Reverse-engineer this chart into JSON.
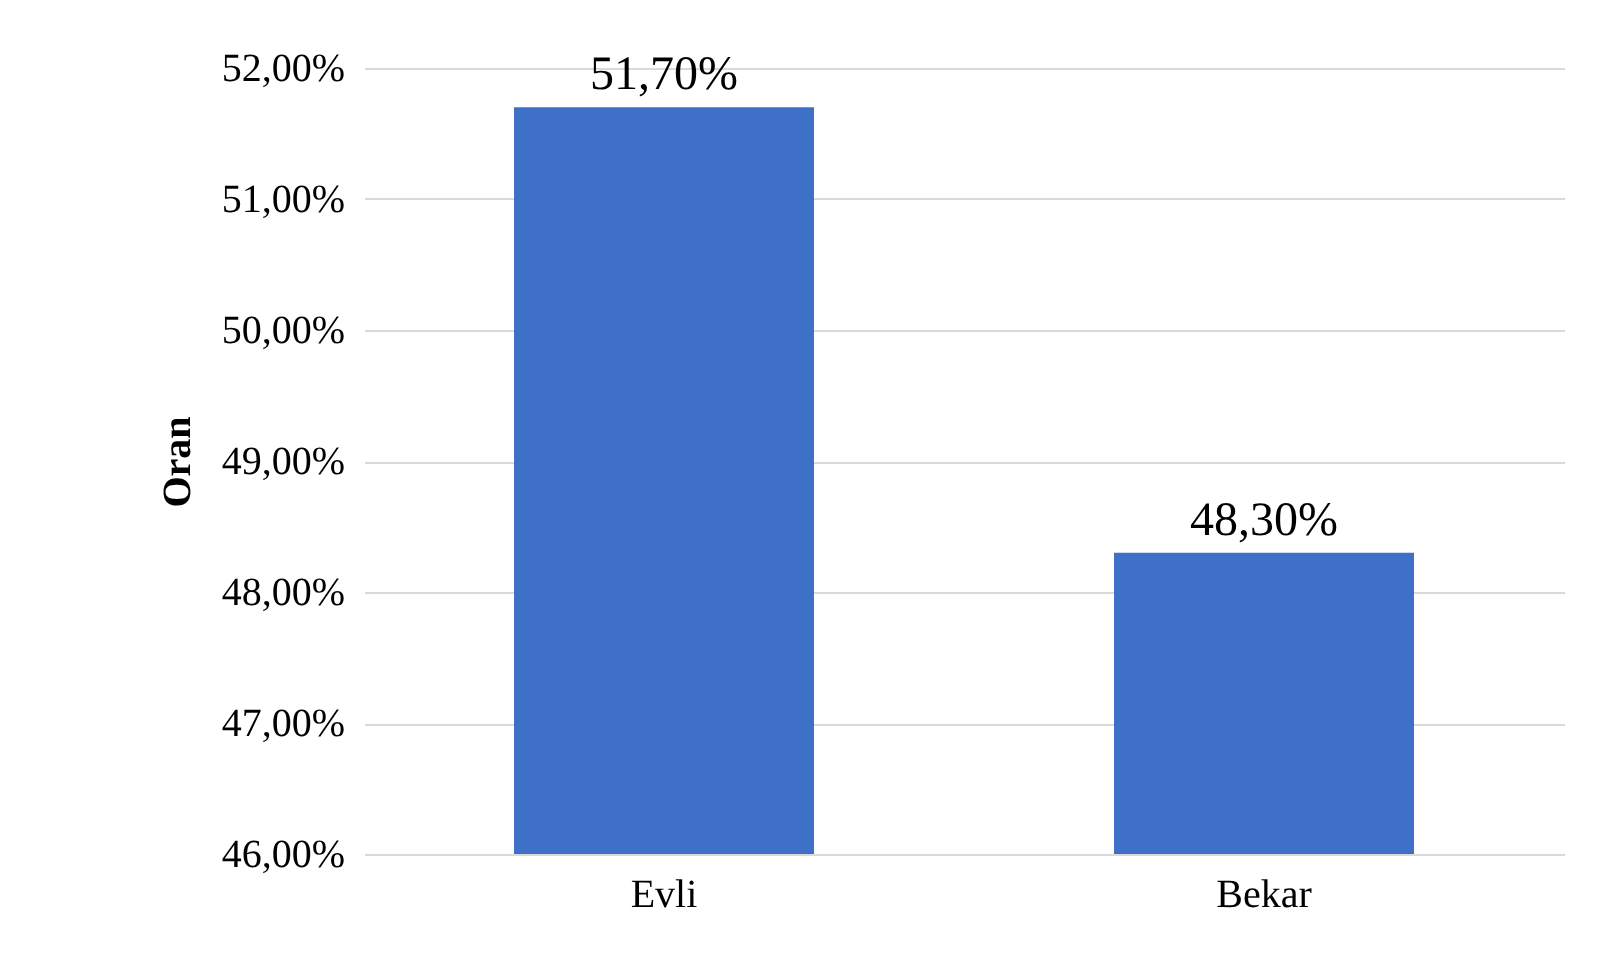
{
  "chart_data": {
    "type": "bar",
    "ylabel": "Oran",
    "categories": [
      "Evli",
      "Bekar"
    ],
    "values": [
      51.7,
      48.3
    ],
    "value_labels": [
      "51,70%",
      "48,30%"
    ],
    "color": "#3f70c8",
    "ylim": [
      46,
      52
    ],
    "yticks": [
      {
        "value": 46,
        "label": "46,00%"
      },
      {
        "value": 47,
        "label": "47,00%"
      },
      {
        "value": 48,
        "label": "48,00%"
      },
      {
        "value": 49,
        "label": "49,00%"
      },
      {
        "value": 50,
        "label": "50,00%"
      },
      {
        "value": 51,
        "label": "51,00%"
      },
      {
        "value": 52,
        "label": "52,00%"
      }
    ],
    "grid": "y"
  }
}
